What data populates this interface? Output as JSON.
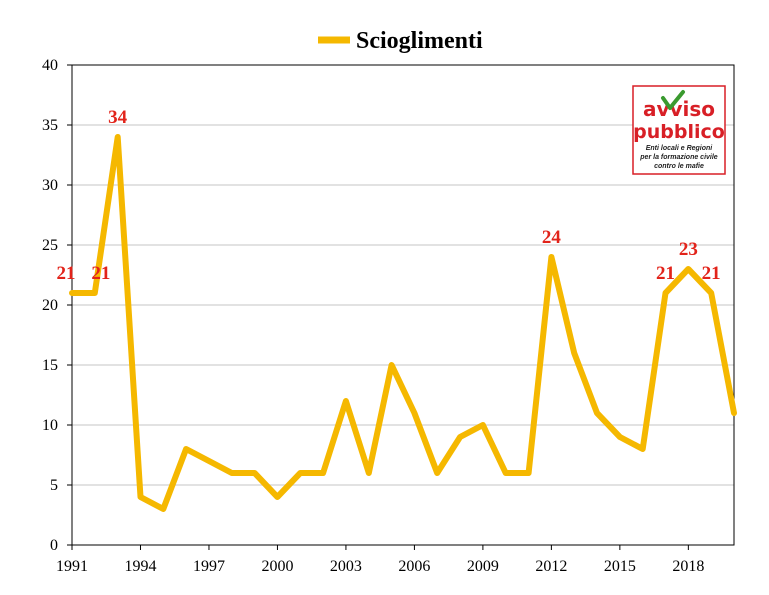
{
  "chart_data": {
    "type": "line",
    "title": "",
    "xlabel": "",
    "ylabel": "",
    "x": [
      1991,
      1992,
      1993,
      1994,
      1995,
      1996,
      1997,
      1998,
      1999,
      2000,
      2001,
      2002,
      2003,
      2004,
      2005,
      2006,
      2007,
      2008,
      2009,
      2010,
      2011,
      2012,
      2013,
      2014,
      2015,
      2016,
      2017,
      2018,
      2019,
      2020
    ],
    "xticks": [
      "1991",
      "1994",
      "1997",
      "2000",
      "2003",
      "2006",
      "2009",
      "2012",
      "2015",
      "2018"
    ],
    "yticks": [
      "0",
      "5",
      "10",
      "15",
      "20",
      "25",
      "30",
      "35",
      "40"
    ],
    "ylim": [
      0,
      40
    ],
    "series": [
      {
        "name": "Scioglimenti",
        "color": "#f5b800",
        "values": [
          21,
          21,
          34,
          4,
          3,
          8,
          7,
          6,
          6,
          4,
          6,
          6,
          12,
          6,
          15,
          11,
          6,
          9,
          10,
          6,
          6,
          24,
          16,
          11,
          9,
          8,
          21,
          23,
          21,
          11
        ]
      }
    ],
    "data_labels": [
      {
        "year": 1991,
        "text": "21"
      },
      {
        "year": 1992,
        "text": "21"
      },
      {
        "year": 1993,
        "text": "34"
      },
      {
        "year": 2012,
        "text": "24"
      },
      {
        "year": 2017,
        "text": "21"
      },
      {
        "year": 2018,
        "text": "23"
      },
      {
        "year": 2019,
        "text": "21"
      }
    ],
    "legend": {
      "position": "top-center"
    },
    "grid": true
  },
  "logo": {
    "line1": "avviso",
    "line2": "pubblico",
    "tagline1": "Enti locali e Regioni",
    "tagline2": "per la formazione civile",
    "tagline3": "contro le mafie",
    "border_color": "#d81f26",
    "check_color": "#3a9a2f"
  }
}
